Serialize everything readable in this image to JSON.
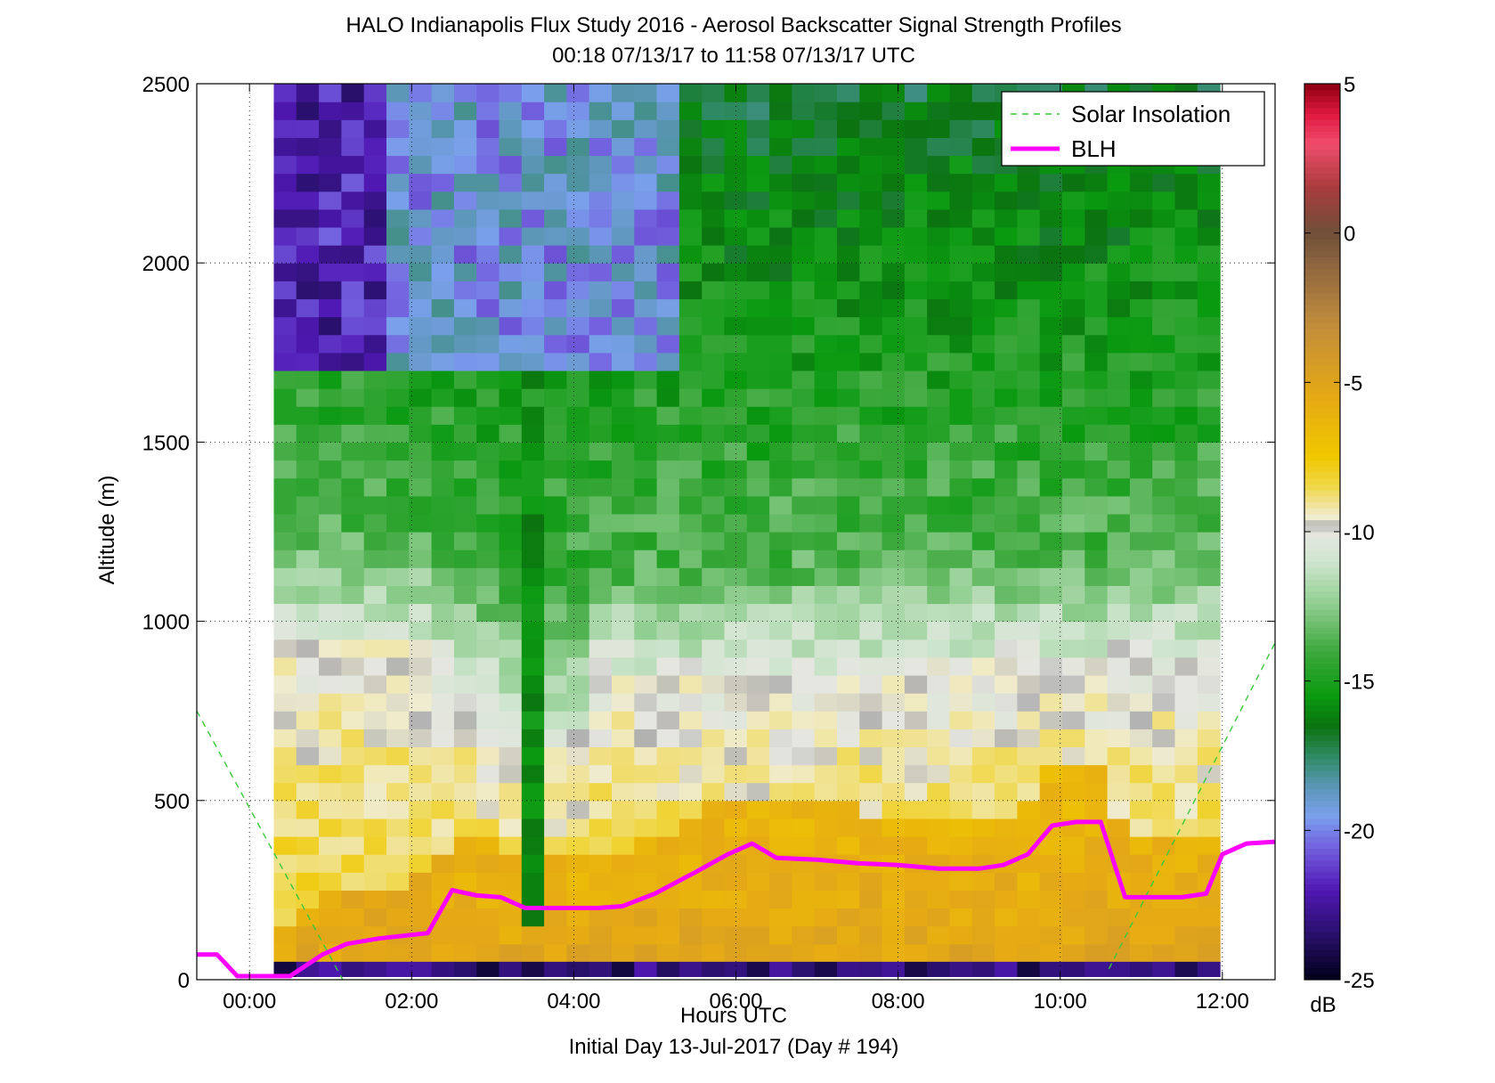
{
  "chart_data": {
    "type": "heatmap",
    "title": "HALO Indianapolis Flux Study 2016 - Aerosol Backscatter Signal Strength Profiles",
    "subtitle": "00:18 07/13/17 to 11:58 07/13/17  UTC",
    "xlabel": "Hours UTC",
    "xlabel2": "Initial Day 13-Jul-2017 (Day # 194)",
    "ylabel": "Altitude (m)",
    "xlim": [
      -0.65,
      12.65
    ],
    "ylim": [
      0,
      2500
    ],
    "x_ticks": [
      0,
      2,
      4,
      6,
      8,
      10,
      12
    ],
    "x_tick_labels": [
      "00:00",
      "02:00",
      "04:00",
      "06:00",
      "08:00",
      "10:00",
      "12:00"
    ],
    "y_ticks": [
      0,
      500,
      1000,
      1500,
      2000,
      2500
    ],
    "y_tick_labels": [
      "0",
      "500",
      "1000",
      "1500",
      "2000",
      "2500"
    ],
    "grid": "dotted",
    "legend": {
      "placement": "top-right",
      "entries": [
        {
          "label": "Solar Insolation",
          "color": "#3cc83c",
          "style": "dashed"
        },
        {
          "label": "BLH",
          "color": "#ff00ff",
          "style": "solid"
        }
      ]
    },
    "colorbar": {
      "unit": "dB",
      "range": [
        -25,
        5
      ],
      "ticks": [
        5,
        0,
        -5,
        -10,
        -15,
        -20,
        -25
      ],
      "tick_labels": [
        "5",
        "0",
        "-5",
        "-10",
        "-15",
        "-20",
        "-25"
      ],
      "stops": [
        {
          "v": -25,
          "c": "#000018"
        },
        {
          "v": -23.5,
          "c": "#28106a"
        },
        {
          "v": -22,
          "c": "#5018b4"
        },
        {
          "v": -20.5,
          "c": "#7464e0"
        },
        {
          "v": -19.5,
          "c": "#7aa0ec"
        },
        {
          "v": -18.5,
          "c": "#5a96b4"
        },
        {
          "v": -17.5,
          "c": "#2e8a62"
        },
        {
          "v": -16.5,
          "c": "#0b7310"
        },
        {
          "v": -15.5,
          "c": "#0a9a10"
        },
        {
          "v": -14,
          "c": "#3ca83c"
        },
        {
          "v": -12.5,
          "c": "#8ccc8c"
        },
        {
          "v": -11,
          "c": "#cfe5cf"
        },
        {
          "v": -10,
          "c": "#e6e6e0"
        },
        {
          "v": -9.8,
          "c": "#b0b0b0"
        },
        {
          "v": -9.5,
          "c": "#f0ecd0"
        },
        {
          "v": -8.5,
          "c": "#f0d84c"
        },
        {
          "v": -7.5,
          "c": "#f0c800"
        },
        {
          "v": -5.5,
          "c": "#e6aa14"
        },
        {
          "v": -3,
          "c": "#c08c3c"
        },
        {
          "v": -1,
          "c": "#8c6440"
        },
        {
          "v": 0,
          "c": "#6e5038"
        },
        {
          "v": 1.5,
          "c": "#a83c3c"
        },
        {
          "v": 3,
          "c": "#f04c6c"
        },
        {
          "v": 4,
          "c": "#e01840"
        },
        {
          "v": 5,
          "c": "#8c0010"
        }
      ]
    },
    "heatmap": {
      "x_start_hours": 0.3,
      "x_end_hours": 11.97,
      "y_step_m": 50,
      "y_start_m": 50,
      "y_end_m": 2500,
      "n_columns": 42,
      "description_db_profile": "approximate backscatter dB values derived per column"
    },
    "series": [
      {
        "name": "BLH",
        "color": "#ff00ff",
        "x": [
          -0.65,
          -0.4,
          -0.15,
          0.15,
          0.5,
          0.9,
          1.2,
          1.6,
          2.0,
          2.2,
          2.5,
          2.8,
          3.1,
          3.4,
          3.7,
          4.0,
          4.3,
          4.6,
          5.0,
          5.5,
          5.9,
          6.2,
          6.5,
          7.0,
          7.5,
          8.0,
          8.5,
          9.0,
          9.3,
          9.6,
          9.9,
          10.2,
          10.5,
          10.8,
          11.1,
          11.5,
          11.8,
          12.0,
          12.3,
          12.65
        ],
        "y": [
          70,
          70,
          10,
          10,
          10,
          70,
          100,
          115,
          125,
          130,
          250,
          235,
          230,
          200,
          200,
          200,
          200,
          205,
          240,
          300,
          350,
          380,
          340,
          335,
          325,
          320,
          310,
          310,
          320,
          350,
          430,
          440,
          440,
          230,
          230,
          230,
          240,
          350,
          380,
          385
        ]
      },
      {
        "name": "Solar Insolation",
        "color": "#3cc83c",
        "segments": [
          {
            "x": [
              -0.65,
              1.15
            ],
            "y": [
              750,
              0
            ]
          },
          {
            "x": [
              10.6,
              12.65
            ],
            "y": [
              30,
              940
            ]
          }
        ]
      }
    ]
  }
}
